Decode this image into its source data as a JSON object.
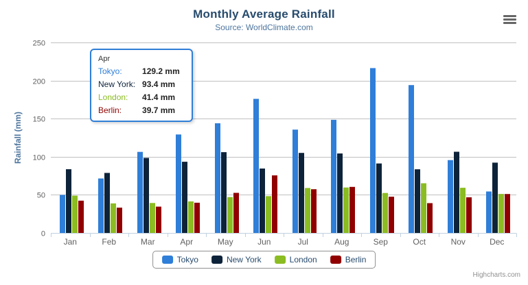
{
  "header": {
    "title": "Monthly Average Rainfall",
    "subtitle": "Source: WorldClimate.com"
  },
  "credits_label": "Highcharts.com",
  "context_menu_icon": "hamburger-icon",
  "colors": {
    "title": "#274b6d",
    "subtitle": "#4d759e",
    "axis_title": "#4d759e",
    "axis_labels": "#606060",
    "gridline": "#c0c0c0",
    "axis_line": "#c0d0e0",
    "legend_border": "#909090",
    "legend_text": "#274b6d",
    "credits_text": "#909090",
    "tooltip_border": "#2f7ed8"
  },
  "chart_data": {
    "type": "bar",
    "title": "Monthly Average Rainfall",
    "subtitle": "Source: WorldClimate.com",
    "xlabel": "",
    "ylabel": "Rainfall (mm)",
    "ylim": [
      0,
      250
    ],
    "ytick_interval": 50,
    "yticks": [
      0,
      50,
      100,
      150,
      200,
      250
    ],
    "grid": true,
    "legend_position": "bottom",
    "unit": "mm",
    "categories": [
      "Jan",
      "Feb",
      "Mar",
      "Apr",
      "May",
      "Jun",
      "Jul",
      "Aug",
      "Sep",
      "Oct",
      "Nov",
      "Dec"
    ],
    "series": [
      {
        "name": "Tokyo",
        "color": "#2f7ed8",
        "values": [
          49.9,
          71.5,
          106.4,
          129.2,
          144.0,
          176.0,
          135.6,
          148.5,
          216.4,
          194.1,
          95.6,
          54.4
        ]
      },
      {
        "name": "New York",
        "color": "#0d233a",
        "values": [
          83.6,
          78.8,
          98.5,
          93.4,
          106.0,
          84.5,
          105.0,
          104.3,
          91.2,
          83.5,
          106.6,
          92.3
        ]
      },
      {
        "name": "London",
        "color": "#8bbc21",
        "values": [
          48.9,
          38.8,
          39.3,
          41.4,
          47.0,
          48.3,
          59.0,
          59.6,
          52.4,
          65.2,
          59.3,
          51.2
        ]
      },
      {
        "name": "Berlin",
        "color": "#910000",
        "values": [
          42.4,
          33.2,
          34.5,
          39.7,
          52.6,
          75.5,
          57.4,
          60.4,
          47.6,
          39.1,
          46.8,
          51.1
        ]
      }
    ]
  },
  "tooltip": {
    "category": "Apr",
    "rows": [
      {
        "label": "Tokyo:",
        "value": "129.2 mm",
        "color": "#2f7ed8"
      },
      {
        "label": "New York:",
        "value": "93.4 mm",
        "color": "#0d233a"
      },
      {
        "label": "London:",
        "value": "41.4 mm",
        "color": "#8bbc21"
      },
      {
        "label": "Berlin:",
        "value": "39.7 mm",
        "color": "#910000"
      }
    ]
  },
  "legend": {
    "items": [
      "Tokyo",
      "New York",
      "London",
      "Berlin"
    ]
  }
}
